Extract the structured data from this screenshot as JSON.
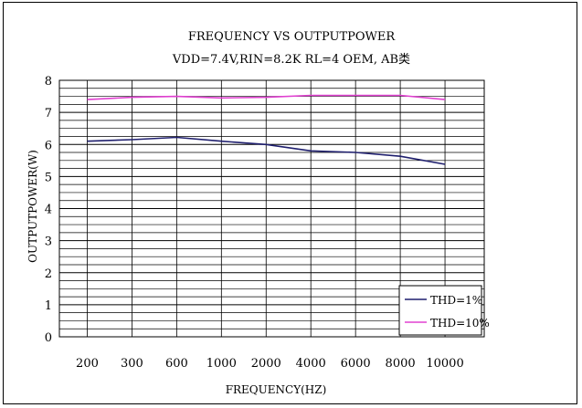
{
  "chart_data": {
    "type": "line",
    "title": "FREQUENCY VS OUTPUTPOWER",
    "subtitle": "VDD=7.4V,RIN=8.2K RL=4 OEM, AB类",
    "xlabel": "FREQUENCY(HZ)",
    "ylabel": "OUTPUTPOWER(W)",
    "categories": [
      "200",
      "300",
      "600",
      "1000",
      "2000",
      "4000",
      "6000",
      "8000",
      "10000"
    ],
    "ylim": [
      0,
      8
    ],
    "yticks": [
      "0",
      "1",
      "2",
      "3",
      "4",
      "5",
      "6",
      "7",
      "8"
    ],
    "grid": true,
    "legend_position": "bottom-right",
    "series": [
      {
        "name": "THD=1%",
        "color": "#1f1f6e",
        "values": [
          6.1,
          6.15,
          6.22,
          6.1,
          6.0,
          5.8,
          5.75,
          5.63,
          5.38
        ]
      },
      {
        "name": "THD=10%",
        "color": "#e040d0",
        "values": [
          7.4,
          7.47,
          7.5,
          7.45,
          7.47,
          7.53,
          7.53,
          7.53,
          7.4
        ]
      }
    ]
  }
}
